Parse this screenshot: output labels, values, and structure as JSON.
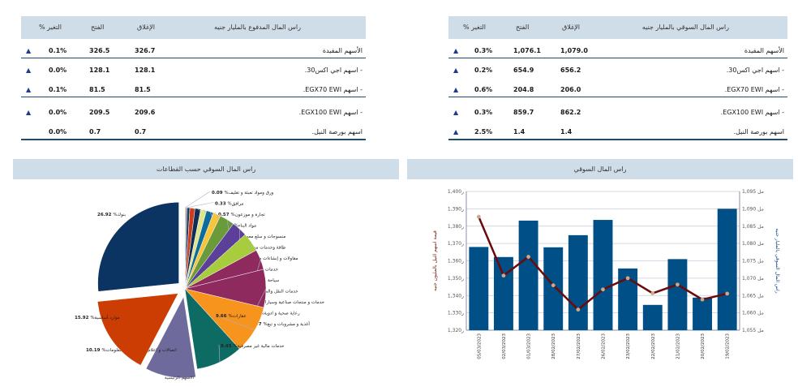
{
  "left_table": {
    "headers": {
      "name": "راس المال المدفوع بالمليار جنيه",
      "close": "الإغلاق",
      "open": "الفتح",
      "change": "% التغير"
    },
    "rows": [
      {
        "name": "الأسهم المقيدة",
        "close": "326.7",
        "open": "326.5",
        "change": "0.1%",
        "arrow": "▲"
      },
      {
        "name": "- اسهم اجي اكس30.",
        "close": "128.1",
        "open": "128.1",
        "change": "0.0%",
        "arrow": "▲"
      },
      {
        "name": "- اسهم EGX70 EWI.",
        "close": "81.5",
        "open": "81.5",
        "change": "0.1%",
        "arrow": "▲"
      },
      {
        "name": "- اسهم EGX100 EWI.",
        "close": "209.6",
        "open": "209.5",
        "change": "0.0%",
        "arrow": "▲"
      },
      {
        "name": "اسهم بورصة النيل.",
        "close": "0.7",
        "open": "0.7",
        "change": "0.0%",
        "arrow": ""
      }
    ]
  },
  "right_table": {
    "headers": {
      "name": "راس المال السوقي بالمليار جنيه",
      "close": "الإغلاق",
      "open": "الفتح",
      "change": "% التغير"
    },
    "rows": [
      {
        "name": "الأسهم المقيدة",
        "close": "1,079.0",
        "open": "1,076.1",
        "change": "0.3%",
        "arrow": "▲"
      },
      {
        "name": "- اسهم اجي اكس30.",
        "close": "656.2",
        "open": "654.9",
        "change": "0.2%",
        "arrow": "▲"
      },
      {
        "name": "- اسهم EGX70 EWI.",
        "close": "206.0",
        "open": "204.8",
        "change": "0.6%",
        "arrow": "▲"
      },
      {
        "name": "- اسهم EGX100 EWI.",
        "close": "862.2",
        "open": "859.7",
        "change": "0.3%",
        "arrow": "▲"
      },
      {
        "name": "اسهم بورصة النيل.",
        "close": "1.4",
        "open": "1.4",
        "change": "2.5%",
        "arrow": "▲"
      }
    ]
  },
  "pie_panel": {
    "title": "راس المال السوقي حسب القطاعات"
  },
  "bar_panel": {
    "title": "راس المال السوقي"
  },
  "chart_data": [
    {
      "type": "pie",
      "title": "راس المال السوقي حسب القطاعات",
      "caption": "الاسهم الرئيسية",
      "slices": [
        {
          "label": "%ورق ومواد تعبئة و تغليف",
          "value": 0.09,
          "color": "#f39c12"
        },
        {
          "label": "%مرافق",
          "value": 0.33,
          "color": "#8c8fa6"
        },
        {
          "label": "%تجارة و موزعون",
          "value": 0.57,
          "color": "#1b3a5e"
        },
        {
          "label": "%مواد البناء",
          "value": 1.03,
          "color": "#cc3d1c"
        },
        {
          "label": "%منسوجات و سلع معمرة",
          "value": 1.16,
          "color": "#0f2d55"
        },
        {
          "label": "%طاقة وخدمات مساندة",
          "value": 1.17,
          "color": "#dfe58a"
        },
        {
          "label": "%مقاولات و إنشاءات هندسية",
          "value": 1.44,
          "color": "#0f6b9a"
        },
        {
          "label": "%خدمات تعليمية",
          "value": 1.52,
          "color": "#f7c43a"
        },
        {
          "label": "%سياحة وترفيه",
          "value": 3.01,
          "color": "#6a9a3a"
        },
        {
          "label": "%خدمات النقل والشحن",
          "value": 3.18,
          "color": "#5b3f98"
        },
        {
          "label": "%خدمات و منتجات صناعية وسيارات",
          "value": 3.82,
          "color": "#a7cc3c"
        },
        {
          "label": "%رعاية صحية و ادوية",
          "value": 4.06,
          "color": "#8e2a5e"
        },
        {
          "label": "%أغذية و مشروبات و تبغ",
          "value": 7.67,
          "color": "#8e2a5e"
        },
        {
          "label": "%عقارات",
          "value": 9.66,
          "color": "#f7941d"
        },
        {
          "label": "%خدمات مالية غير مصرفية",
          "value": 9.45,
          "color": "#0d6b64"
        },
        {
          "label": "%اتصالات و اعلام و تكنولوجيا المعلومات",
          "value": 10.19,
          "color": "#6f6a9c"
        },
        {
          "label": "%موارد أساسية",
          "value": 15.92,
          "color": "#cc3d04"
        },
        {
          "label": "%بنوك",
          "value": 26.92,
          "color": "#0c3462"
        }
      ]
    },
    {
      "type": "bar",
      "title": "راس المال السوقي",
      "categories": [
        "05/03/2023",
        "02/03/2023",
        "01/03/2023",
        "28/02/2023",
        "27/02/2023",
        "26/02/2023",
        "23/02/2023",
        "22/02/2023",
        "21/02/2023",
        "20/02/2023",
        "19/02/2023"
      ],
      "series": [
        {
          "name": "راس المال السوقي بالمليار جنيه",
          "type": "bar",
          "axis": "right",
          "color": "#004f86",
          "values": [
            1079.0,
            1076.1,
            1086.6,
            1078.9,
            1082.4,
            1086.8,
            1072.8,
            1062.3,
            1075.5,
            1064.4,
            1090.0
          ]
        },
        {
          "name": "قيمة اسهم النيل بالمليون جنيه",
          "type": "line",
          "axis": "left",
          "color": "#6b0a0a",
          "values": [
            1385.4,
            1351.5,
            1362.3,
            1345.9,
            1331.9,
            1343.5,
            1350.0,
            1341.3,
            1346.3,
            1337.7,
            1341.1
          ]
        }
      ],
      "left_axis": {
        "label": "قيمة اسهم النيل بالمليون جنيه",
        "ylim": [
          1320,
          1400
        ],
        "step": 10,
        "tick_suffix": "ر"
      },
      "right_axis": {
        "label": "راس المال السوقي بالمليار جنيه",
        "ylim": [
          1055,
          1095
        ],
        "step": 5,
        "tick_prefix": "مل"
      },
      "grid": true
    }
  ]
}
